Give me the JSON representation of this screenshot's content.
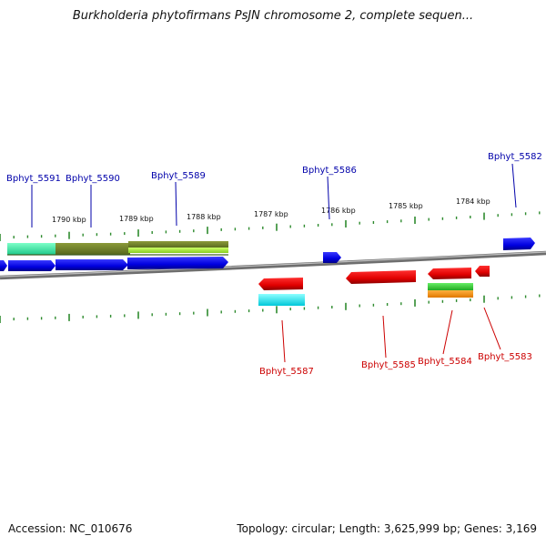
{
  "title": "Burkholderia phytofirmans PsJN chromosome 2, complete sequen...",
  "footer": {
    "accession": "Accession: NC_010676",
    "topology": "Topology: circular; Length: 3,625,999 bp; Genes: 3,169"
  },
  "colors": {
    "backbone": "#888888",
    "tick": "#2e8b2e",
    "forward_label": "#0000aa",
    "reverse_label": "#cc0000"
  },
  "scale_ticks": [
    "1790 kbp",
    "1789 kbp",
    "1788 kbp",
    "1787 kbp",
    "1786 kbp",
    "1785 kbp",
    "1784 kbp"
  ],
  "forward_genes": [
    "Bphyt_5591",
    "Bphyt_5590",
    "Bphyt_5589",
    "Bphyt_5586",
    "Bphyt_5582"
  ],
  "reverse_genes": [
    "Bphyt_5587",
    "Bphyt_5585",
    "Bphyt_5584",
    "Bphyt_5583"
  ]
}
